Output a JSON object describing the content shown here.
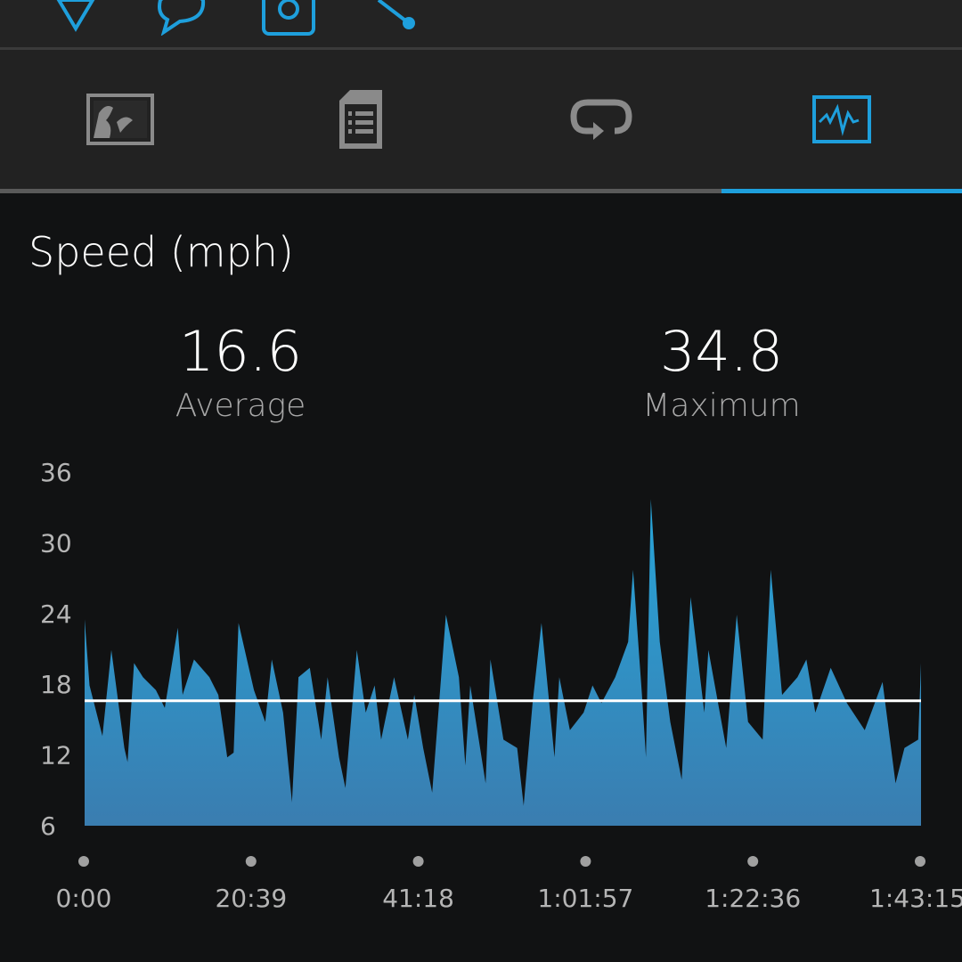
{
  "top_actions": [
    {
      "icon": "like-icon"
    },
    {
      "icon": "comment-icon"
    },
    {
      "icon": "camera-icon"
    },
    {
      "icon": "share-icon"
    }
  ],
  "tabs": [
    {
      "icon": "map-icon",
      "active": false
    },
    {
      "icon": "details-icon",
      "active": false
    },
    {
      "icon": "laps-icon",
      "active": false
    },
    {
      "icon": "charts-icon",
      "active": true
    }
  ],
  "colors": {
    "accent": "#1e9fdc",
    "fill_top": "#27a4d8",
    "fill_bottom": "#3a7db0",
    "average_line": "#ffffff"
  },
  "page_title": "Speed (mph)",
  "stats": {
    "average": {
      "value": "16.6",
      "label": "Average"
    },
    "maximum": {
      "value": "34.8",
      "label": "Maximum"
    }
  },
  "chart_data": {
    "type": "area",
    "title": "Speed (mph)",
    "x_unit": "minutes elapsed",
    "xlim": [
      0,
      103.25
    ],
    "ylim": [
      6,
      36
    ],
    "y_ticks": [
      "36",
      "30",
      "24",
      "18",
      "12",
      "6"
    ],
    "y_tick_values": [
      36,
      30,
      24,
      18,
      12,
      6
    ],
    "x_ticks": [
      "0:00",
      "20:39",
      "41:18",
      "1:01:57",
      "1:22:36",
      "1:43:15"
    ],
    "x_tick_values": [
      0,
      20.65,
      41.3,
      61.95,
      82.6,
      103.25
    ],
    "average_line": 16.6,
    "grid": false,
    "points": [
      [
        0,
        23.5
      ],
      [
        0.6,
        17.9
      ],
      [
        2.2,
        13.6
      ],
      [
        3.3,
        20.9
      ],
      [
        4.9,
        12.6
      ],
      [
        5.3,
        11.4
      ],
      [
        6.1,
        19.8
      ],
      [
        7.2,
        18.6
      ],
      [
        8.8,
        17.5
      ],
      [
        9.9,
        16.0
      ],
      [
        11.5,
        22.8
      ],
      [
        12.1,
        17.1
      ],
      [
        13.5,
        20.1
      ],
      [
        15.4,
        18.6
      ],
      [
        16.5,
        17.1
      ],
      [
        17.6,
        11.8
      ],
      [
        18.4,
        12.2
      ],
      [
        19.0,
        23.2
      ],
      [
        20.9,
        17.5
      ],
      [
        22.3,
        14.8
      ],
      [
        23.1,
        20.1
      ],
      [
        24.5,
        15.6
      ],
      [
        25.6,
        8.0
      ],
      [
        26.4,
        18.6
      ],
      [
        27.8,
        19.4
      ],
      [
        29.2,
        13.3
      ],
      [
        30.0,
        18.6
      ],
      [
        31.4,
        11.8
      ],
      [
        32.2,
        9.2
      ],
      [
        33.6,
        20.9
      ],
      [
        34.7,
        15.6
      ],
      [
        35.8,
        17.9
      ],
      [
        36.6,
        13.3
      ],
      [
        38.2,
        18.6
      ],
      [
        39.9,
        13.3
      ],
      [
        40.7,
        17.1
      ],
      [
        41.8,
        12.6
      ],
      [
        42.9,
        8.8
      ],
      [
        44.0,
        18.6
      ],
      [
        44.6,
        23.9
      ],
      [
        46.2,
        18.6
      ],
      [
        47.0,
        11.1
      ],
      [
        47.6,
        17.9
      ],
      [
        49.5,
        9.6
      ],
      [
        50.1,
        20.1
      ],
      [
        51.7,
        13.3
      ],
      [
        53.4,
        12.6
      ],
      [
        54.2,
        7.7
      ],
      [
        55.3,
        16.4
      ],
      [
        56.4,
        23.2
      ],
      [
        58.0,
        11.8
      ],
      [
        58.6,
        18.6
      ],
      [
        59.9,
        14.1
      ],
      [
        61.6,
        15.6
      ],
      [
        62.7,
        17.9
      ],
      [
        63.8,
        16.4
      ],
      [
        65.5,
        18.6
      ],
      [
        67.1,
        21.6
      ],
      [
        67.7,
        27.7
      ],
      [
        68.8,
        17.1
      ],
      [
        69.3,
        11.8
      ],
      [
        69.9,
        33.7
      ],
      [
        71.0,
        21.6
      ],
      [
        72.3,
        14.8
      ],
      [
        73.7,
        9.9
      ],
      [
        74.8,
        25.4
      ],
      [
        76.5,
        15.6
      ],
      [
        77.0,
        20.9
      ],
      [
        79.2,
        12.6
      ],
      [
        80.5,
        23.9
      ],
      [
        81.9,
        14.8
      ],
      [
        83.7,
        13.3
      ],
      [
        84.7,
        27.7
      ],
      [
        86.1,
        17.1
      ],
      [
        88.0,
        18.6
      ],
      [
        89.1,
        20.1
      ],
      [
        90.2,
        15.6
      ],
      [
        92.1,
        19.4
      ],
      [
        94.1,
        16.4
      ],
      [
        96.3,
        14.1
      ],
      [
        98.5,
        18.2
      ],
      [
        100.1,
        9.6
      ],
      [
        101.2,
        12.6
      ],
      [
        102.9,
        13.3
      ],
      [
        103.25,
        19.8
      ]
    ]
  }
}
